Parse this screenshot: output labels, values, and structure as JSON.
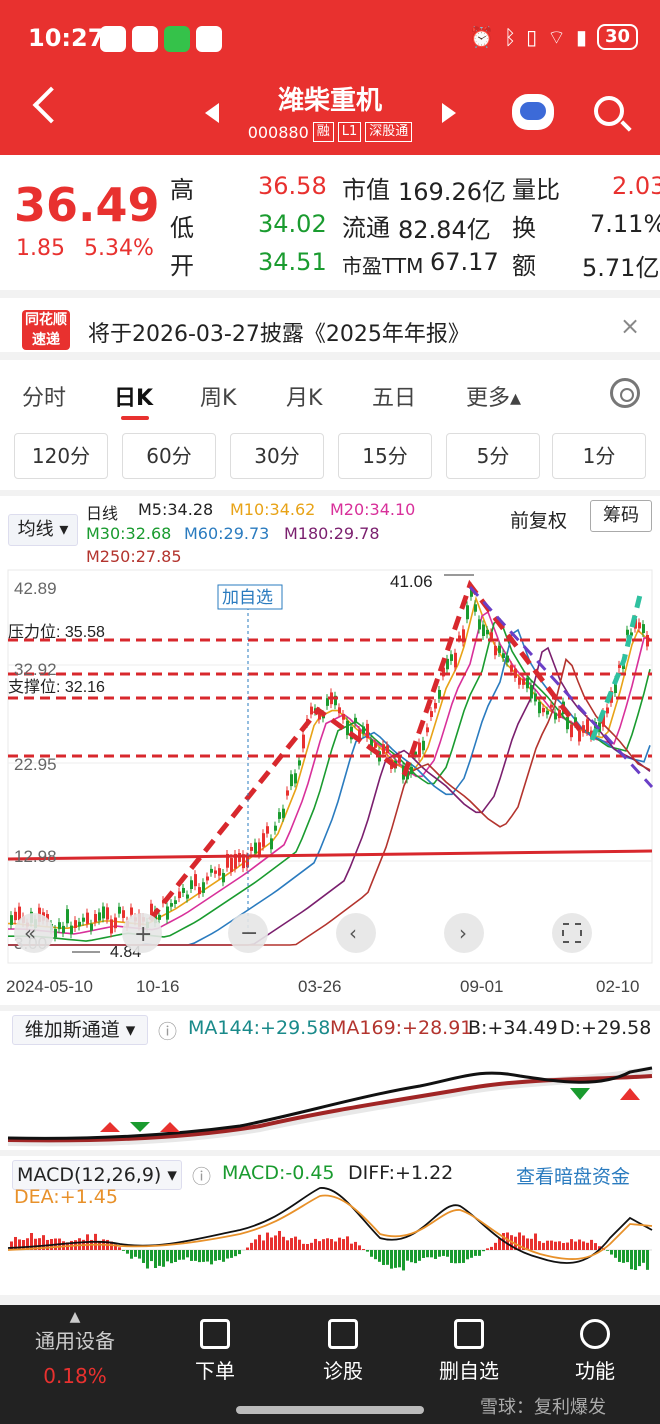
{
  "status": {
    "time": "10:27",
    "battery": "30"
  },
  "header": {
    "title": "潍柴重机",
    "code": "000880",
    "tags": [
      "融",
      "L1",
      "深股通"
    ]
  },
  "quote": {
    "price": "36.49",
    "change": "1.85",
    "change_pct": "5.34%",
    "high_label": "高",
    "high": "36.58",
    "low_label": "低",
    "low": "34.02",
    "open_label": "开",
    "open": "34.51",
    "mcap_label": "市值",
    "mcap": "169.26亿",
    "float_label": "流通",
    "float": "82.84亿",
    "pe_label": "市盈TTM",
    "pe": "67.17",
    "vr_label": "量比",
    "vr": "2.03",
    "turnover_label": "换",
    "turnover": "7.11%",
    "amount_label": "额",
    "amount": "5.71亿"
  },
  "notice": {
    "logo_line1": "同花顺",
    "logo_line2": "速递",
    "text": "将于2026-03-27披露《2025年年报》",
    "close": "×"
  },
  "tabs": {
    "items": [
      "分时",
      "日K",
      "周K",
      "月K",
      "五日",
      "更多▴"
    ],
    "active": "日K"
  },
  "minute_chips": [
    "120分",
    "60分",
    "30分",
    "15分",
    "5分",
    "1分"
  ],
  "ma_legend": {
    "selector": "均线 ▾",
    "period": "日线",
    "m5": "M5:34.28",
    "m10": "M10:34.62",
    "m20": "M20:34.10",
    "m30": "M30:32.68",
    "m60": "M60:29.73",
    "m180": "M180:29.78",
    "m250": "M250:27.85",
    "adjust": "前复权",
    "chip_button": "筹码"
  },
  "kline": {
    "y_ticks": [
      "42.89",
      "32.92",
      "22.95",
      "12.98",
      "3.00"
    ],
    "x_ticks": [
      "2024-05-10",
      "10-16",
      "03-26",
      "09-01",
      "02-10"
    ],
    "pressure_label": "压力位: 35.58",
    "support_label": "支撑位: 32.16",
    "max_label": "41.06",
    "min_label": "4.84",
    "add_watch_label": "加自选",
    "colors": {
      "up": "#e8312f",
      "down": "#1a9b2f",
      "m5": "#222222",
      "m10": "#e8a317",
      "m20": "#d8309a",
      "m30": "#1a9b2f",
      "m60": "#2a7bbf",
      "m180": "#7a1f6e",
      "m250": "#b3342e"
    }
  },
  "vegas": {
    "selector": "维加斯通道 ▾",
    "ma144": "MA144:+29.58",
    "ma169": "MA169:+28.91",
    "b": "B:+34.49",
    "d": "D:+29.58"
  },
  "macd": {
    "selector": "MACD(12,26,9) ▾",
    "macd": "MACD:-0.45",
    "diff": "DIFF:+1.22",
    "link": "查看暗盘资金",
    "dea": "DEA:+1.45"
  },
  "bottom_nav": {
    "device_label": "通用设备",
    "device_value": "0.18%",
    "items": [
      "下单",
      "诊股",
      "删自选",
      "功能"
    ]
  },
  "watermark": "雪球：复利爆发"
}
